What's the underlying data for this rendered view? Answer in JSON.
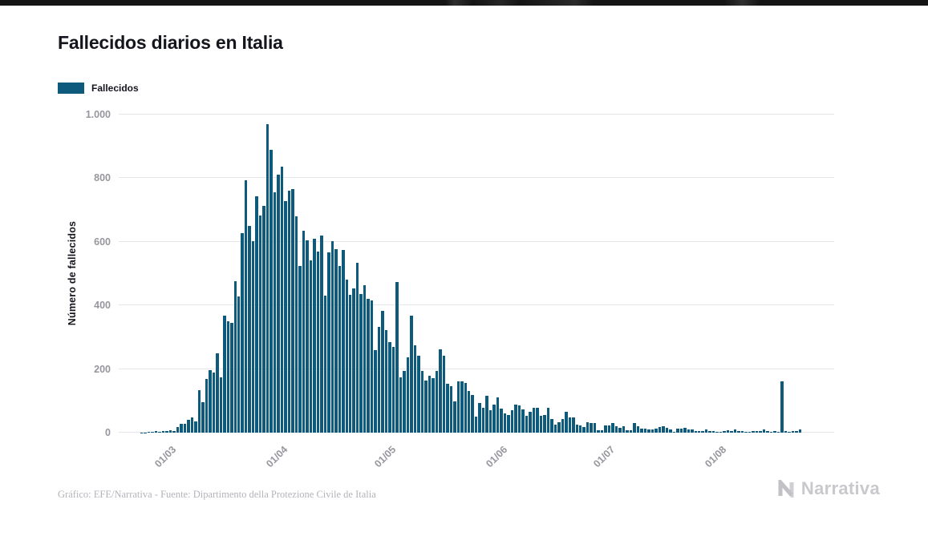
{
  "footer": {
    "credit": "Gráfico: EFE/Narrativa - Fuente: Dipartimento della Protezione Civile de Italia",
    "brand": "Narrativa"
  },
  "chart_data": {
    "type": "bar",
    "title": "Fallecidos diarios en Italia",
    "series_name": "Fallecidos",
    "bar_color": "#0e5a7d",
    "ylabel": "Número de fallecidos",
    "xlabel": "",
    "ylim": [
      0,
      1000
    ],
    "grid": true,
    "legend_position": "top-left",
    "start_date": "2020-02-15",
    "end_date": "2020-08-22",
    "frequency": "daily",
    "trailing_empty_days": 9,
    "y_ticks": [
      {
        "value": 0,
        "label": "0"
      },
      {
        "value": 200,
        "label": "200"
      },
      {
        "value": 400,
        "label": "400"
      },
      {
        "value": 600,
        "label": "600"
      },
      {
        "value": 800,
        "label": "800"
      },
      {
        "value": 1000,
        "label": "1.000"
      }
    ],
    "x_ticks": [
      {
        "index": 15,
        "label": "01/03"
      },
      {
        "index": 46,
        "label": "01/04"
      },
      {
        "index": 76,
        "label": "01/05"
      },
      {
        "index": 107,
        "label": "01/06"
      },
      {
        "index": 137,
        "label": "01/07"
      },
      {
        "index": 168,
        "label": "01/08"
      }
    ],
    "values": [
      0,
      0,
      0,
      0,
      0,
      0,
      1,
      1,
      2,
      3,
      4,
      2,
      5,
      4,
      8,
      5,
      18,
      27,
      28,
      41,
      49,
      36,
      133,
      97,
      168,
      196,
      189,
      250,
      175,
      368,
      349,
      345,
      475,
      427,
      627,
      793,
      651,
      601,
      743,
      683,
      712,
      969,
      889,
      756,
      812,
      837,
      727,
      760,
      766,
      681,
      525,
      636,
      604,
      542,
      610,
      570,
      619,
      431,
      566,
      602,
      578,
      525,
      575,
      482,
      433,
      454,
      534,
      437,
      464,
      420,
      415,
      260,
      333,
      382,
      323,
      285,
      269,
      474,
      174,
      195,
      236,
      369,
      274,
      243,
      194,
      165,
      179,
      172,
      195,
      262,
      242,
      153,
      145,
      99,
      162,
      161,
      156,
      130,
      119,
      50,
      92,
      78,
      117,
      70,
      87,
      111,
      75,
      60,
      55,
      71,
      88,
      85,
      72,
      53,
      65,
      79,
      79,
      53,
      56,
      78,
      44,
      26,
      34,
      43,
      66,
      47,
      49,
      24,
      23,
      18,
      34,
      30,
      30,
      8,
      8,
      23,
      23,
      30,
      21,
      15,
      21,
      8,
      8,
      30,
      20,
      12,
      12,
      9,
      9,
      13,
      17,
      20,
      16,
      11,
      3,
      13,
      13,
      15,
      10,
      10,
      5,
      5,
      5,
      11,
      5,
      6,
      3,
      3,
      5,
      8,
      5,
      10,
      6,
      6,
      3,
      2,
      6,
      4,
      6,
      10,
      6,
      3,
      4,
      3,
      162,
      4,
      3,
      5,
      6,
      9
    ]
  }
}
